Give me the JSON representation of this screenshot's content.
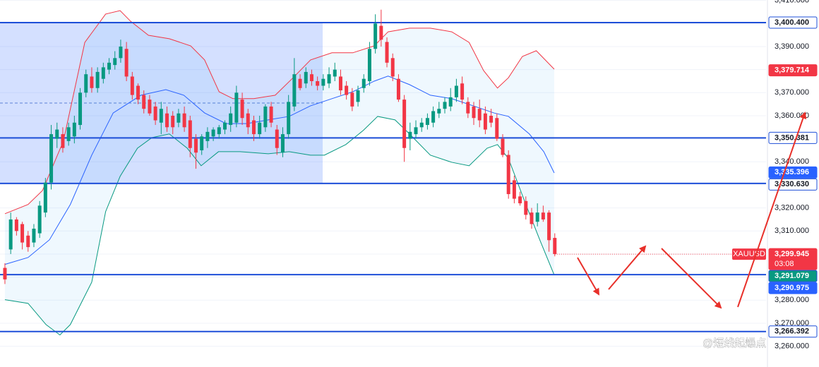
{
  "chart_data": {
    "type": "candlestick",
    "symbol": "XAUUSD",
    "countdown": "03:08",
    "watermark": "@短线起爆点",
    "up_color": "#089981",
    "down_color": "#f23645",
    "xlim": [
      -0.85,
      131.5
    ],
    "ylim": [
      3251,
      3410.2
    ],
    "grid": true,
    "yticks": [
      {
        "value": 3260,
        "label": "3,260.000"
      },
      {
        "value": 3270,
        "label": "3,270.000"
      },
      {
        "value": 3280,
        "label": "3,280.000"
      },
      {
        "value": 3290,
        "label": "3,290.000"
      },
      {
        "value": 3300,
        "label": "3,300.000"
      },
      {
        "value": 3310,
        "label": "3,310.000"
      },
      {
        "value": 3320,
        "label": "3,320.000"
      },
      {
        "value": 3330,
        "label": "3,330.000"
      },
      {
        "value": 3340,
        "label": "3,340.000"
      },
      {
        "value": 3350,
        "label": "3,350.000"
      },
      {
        "value": 3360,
        "label": "3,360.000"
      },
      {
        "value": 3370,
        "label": "3,370.000"
      },
      {
        "value": 3380,
        "label": "3,380.000"
      },
      {
        "value": 3390,
        "label": "3,390.000"
      },
      {
        "value": 3400,
        "label": "3,400.000"
      },
      {
        "value": 3410,
        "label": "3,410.000"
      }
    ],
    "candles": [
      [
        3294,
        3296,
        3287,
        3289
      ],
      [
        3302,
        3318,
        3300,
        3315
      ],
      [
        3315,
        3316,
        3308,
        3310
      ],
      [
        3313,
        3314,
        3302,
        3305
      ],
      [
        3308,
        3310,
        3301,
        3303
      ],
      [
        3305,
        3313,
        3303,
        3311
      ],
      [
        3309,
        3323,
        3307,
        3321
      ],
      [
        3318,
        3333,
        3316,
        3331
      ],
      [
        3331,
        3356,
        3328,
        3352
      ],
      [
        3350,
        3357,
        3346,
        3354
      ],
      [
        3352,
        3355,
        3344,
        3346
      ],
      [
        3349,
        3357,
        3347,
        3355
      ],
      [
        3351,
        3360,
        3348,
        3357
      ],
      [
        3356,
        3372,
        3354,
        3370
      ],
      [
        3370,
        3380,
        3368,
        3378
      ],
      [
        3377,
        3381,
        3370,
        3372
      ],
      [
        3372,
        3381,
        3370,
        3379
      ],
      [
        3376,
        3383,
        3374,
        3381
      ],
      [
        3380,
        3385,
        3378,
        3383
      ],
      [
        3382,
        3388,
        3380,
        3385
      ],
      [
        3385,
        3393,
        3383,
        3390
      ],
      [
        3389,
        3392,
        3375,
        3377
      ],
      [
        3377,
        3379,
        3367,
        3369
      ],
      [
        3373,
        3374,
        3365,
        3367
      ],
      [
        3369,
        3371,
        3361,
        3363
      ],
      [
        3367,
        3369,
        3360,
        3361
      ],
      [
        3364,
        3366,
        3356,
        3358
      ],
      [
        3357,
        3366,
        3352,
        3363
      ],
      [
        3361,
        3364,
        3353,
        3355
      ],
      [
        3360,
        3362,
        3352,
        3355
      ],
      [
        3357,
        3363,
        3355,
        3361
      ],
      [
        3361,
        3364,
        3353,
        3355
      ],
      [
        3358,
        3360,
        3342,
        3346
      ],
      [
        3350,
        3352,
        3337,
        3344
      ],
      [
        3345,
        3352,
        3343,
        3351
      ],
      [
        3349,
        3355,
        3346,
        3353
      ],
      [
        3351,
        3355,
        3349,
        3354
      ],
      [
        3352,
        3356,
        3350,
        3355
      ],
      [
        3354,
        3358,
        3352,
        3357
      ],
      [
        3356,
        3364,
        3353,
        3361
      ],
      [
        3357,
        3373,
        3355,
        3370
      ],
      [
        3367,
        3370,
        3356,
        3359
      ],
      [
        3361,
        3363,
        3352,
        3355
      ],
      [
        3358,
        3360,
        3349,
        3352
      ],
      [
        3352,
        3360,
        3350,
        3357
      ],
      [
        3355,
        3365,
        3353,
        3364
      ],
      [
        3364,
        3366,
        3355,
        3357
      ],
      [
        3354,
        3356,
        3343,
        3346
      ],
      [
        3344,
        3355,
        3342,
        3352
      ],
      [
        3352,
        3369,
        3350,
        3366
      ],
      [
        3364,
        3385,
        3362,
        3378
      ],
      [
        3376,
        3378,
        3371,
        3372
      ],
      [
        3374,
        3381,
        3372,
        3379
      ],
      [
        3378,
        3380,
        3373,
        3375
      ],
      [
        3375,
        3377,
        3371,
        3373
      ],
      [
        3373,
        3378,
        3371,
        3376
      ],
      [
        3374,
        3381,
        3372,
        3378
      ],
      [
        3377,
        3383,
        3375,
        3380
      ],
      [
        3377,
        3380,
        3369,
        3371
      ],
      [
        3373,
        3375,
        3367,
        3369
      ],
      [
        3370,
        3372,
        3362,
        3364
      ],
      [
        3366,
        3373,
        3364,
        3371
      ],
      [
        3372,
        3378,
        3370,
        3376
      ],
      [
        3375,
        3392,
        3373,
        3389
      ],
      [
        3389,
        3404,
        3387,
        3400
      ],
      [
        3399,
        3406,
        3390,
        3393
      ],
      [
        3392,
        3394,
        3381,
        3383
      ],
      [
        3385,
        3387,
        3375,
        3377
      ],
      [
        3376,
        3378,
        3366,
        3367
      ],
      [
        3367,
        3369,
        3340,
        3346
      ],
      [
        3350,
        3357,
        3345,
        3353
      ],
      [
        3352,
        3358,
        3350,
        3355
      ],
      [
        3355,
        3359,
        3353,
        3357
      ],
      [
        3356,
        3361,
        3354,
        3359
      ],
      [
        3357,
        3364,
        3355,
        3362
      ],
      [
        3361,
        3366,
        3359,
        3363
      ],
      [
        3363,
        3368,
        3361,
        3366
      ],
      [
        3364,
        3372,
        3362,
        3368
      ],
      [
        3368,
        3376,
        3366,
        3373
      ],
      [
        3374,
        3377,
        3365,
        3367
      ],
      [
        3366,
        3368,
        3359,
        3361
      ],
      [
        3364,
        3366,
        3356,
        3359
      ],
      [
        3363,
        3367,
        3355,
        3358
      ],
      [
        3361,
        3364,
        3352,
        3354
      ],
      [
        3360,
        3363,
        3355,
        3357
      ],
      [
        3359,
        3361,
        3349,
        3350
      ],
      [
        3350,
        3352,
        3342,
        3343
      ],
      [
        3343,
        3345,
        3324,
        3326
      ],
      [
        3332,
        3334,
        3322,
        3324
      ],
      [
        3325,
        3327,
        3321,
        3322
      ],
      [
        3323,
        3325,
        3315,
        3317
      ],
      [
        3318,
        3320,
        3311,
        3313
      ],
      [
        3314,
        3322,
        3312,
        3318
      ],
      [
        3318,
        3321,
        3314,
        3315
      ],
      [
        3318,
        3319,
        3301,
        3306
      ],
      [
        3307,
        3309,
        3299,
        3300
      ]
    ],
    "bands": [
      {
        "color": "#f23645",
        "x": [
          0,
          4.0,
          6.5,
          10.1,
          13.8,
          17.4,
          19.9,
          21.7,
          24.8,
          28.4,
          32.1,
          34.5,
          37.0,
          39.4,
          43.0,
          46.7,
          49.8,
          52.8,
          56.5,
          60.1,
          63.8,
          66.2,
          69.9,
          73.5,
          77.2,
          80.2,
          82.7,
          85.1,
          87.0,
          89.4,
          91.8,
          94.9
        ],
        "values": [
          3317.5,
          3321.5,
          3327.6,
          3349.0,
          3391.8,
          3404.1,
          3405.6,
          3401.0,
          3394.9,
          3393.4,
          3390.3,
          3384.2,
          3370.4,
          3367.4,
          3367.4,
          3368.9,
          3376.5,
          3384.2,
          3387.3,
          3387.3,
          3390.3,
          3396.4,
          3398.0,
          3398.0,
          3396.4,
          3391.8,
          3379.6,
          3372.0,
          3376.5,
          3385.7,
          3388.2,
          3380.2
        ]
      },
      {
        "color": "#2962ff",
        "x": [
          0,
          4.0,
          7.7,
          11.3,
          15.0,
          18.7,
          23.5,
          27.8,
          30.9,
          34.5,
          38.2,
          41.8,
          45.5,
          49.1,
          52.8,
          56.5,
          60.1,
          63.8,
          66.2,
          69.9,
          73.5,
          77.2,
          80.9,
          84.5,
          87.0,
          90.6,
          93.1,
          94.9
        ],
        "values": [
          3295.5,
          3298.5,
          3306.2,
          3321.5,
          3342.9,
          3361.2,
          3368.9,
          3371.3,
          3368.9,
          3361.2,
          3356.6,
          3356.6,
          3358.2,
          3359.7,
          3364.3,
          3367.4,
          3370.4,
          3375.0,
          3377.2,
          3373.5,
          3368.9,
          3367.4,
          3364.3,
          3361.2,
          3359.7,
          3352.1,
          3344.4,
          3335.2
        ]
      },
      {
        "color": "#089981",
        "x": [
          0,
          4.0,
          7.1,
          9.5,
          11.3,
          15.0,
          17.4,
          19.9,
          22.9,
          25.4,
          28.4,
          31.5,
          33.9,
          36.9,
          40.6,
          45.5,
          49.1,
          52.8,
          55.2,
          58.9,
          61.9,
          64.4,
          67.4,
          69.9,
          73.5,
          77.2,
          80.2,
          83.3,
          85.1,
          87.0,
          90.0,
          92.4,
          94.9
        ],
        "values": [
          3280.2,
          3278.6,
          3269.4,
          3264.9,
          3269.4,
          3287.8,
          3318.4,
          3333.7,
          3345.9,
          3350.5,
          3352.1,
          3345.9,
          3338.3,
          3344.4,
          3344.4,
          3343.5,
          3344.4,
          3342.9,
          3342.9,
          3347.5,
          3353.6,
          3359.7,
          3358.2,
          3352.1,
          3342.9,
          3339.8,
          3338.3,
          3345.9,
          3347.5,
          3341.4,
          3321.5,
          3306.2,
          3290.9
        ]
      }
    ],
    "range_box": {
      "x": [
        -0.85,
        54.9
      ],
      "top": 3400.4,
      "bottom": 3330.63,
      "mid": 3365.5
    },
    "levels": [
      {
        "value": 3400.4,
        "label": "3,400.400",
        "badge": "#ffffff"
      },
      {
        "value": 3350.381,
        "label": "3,350.381",
        "badge": "#ffffff"
      },
      {
        "value": 3330.63,
        "label": "3,330.630",
        "badge": "#ffffff"
      },
      {
        "value": 3291.079,
        "label": "3,291.079",
        "badge": "#089981"
      },
      {
        "value": 3266.392,
        "label": "3,266.392",
        "badge": "#ffffff"
      }
    ],
    "price_labels": [
      {
        "value": 3379.714,
        "label": "3,379.714",
        "color": "#f23645"
      },
      {
        "value": 3335.396,
        "label": "3,335.396",
        "color": "#2962ff"
      },
      {
        "value": 3290.975,
        "label": "3,290.975",
        "color": "#2962ff"
      }
    ],
    "last_price": {
      "value": 3299.945,
      "label": "3,299.945",
      "color": "#f23645"
    }
  }
}
